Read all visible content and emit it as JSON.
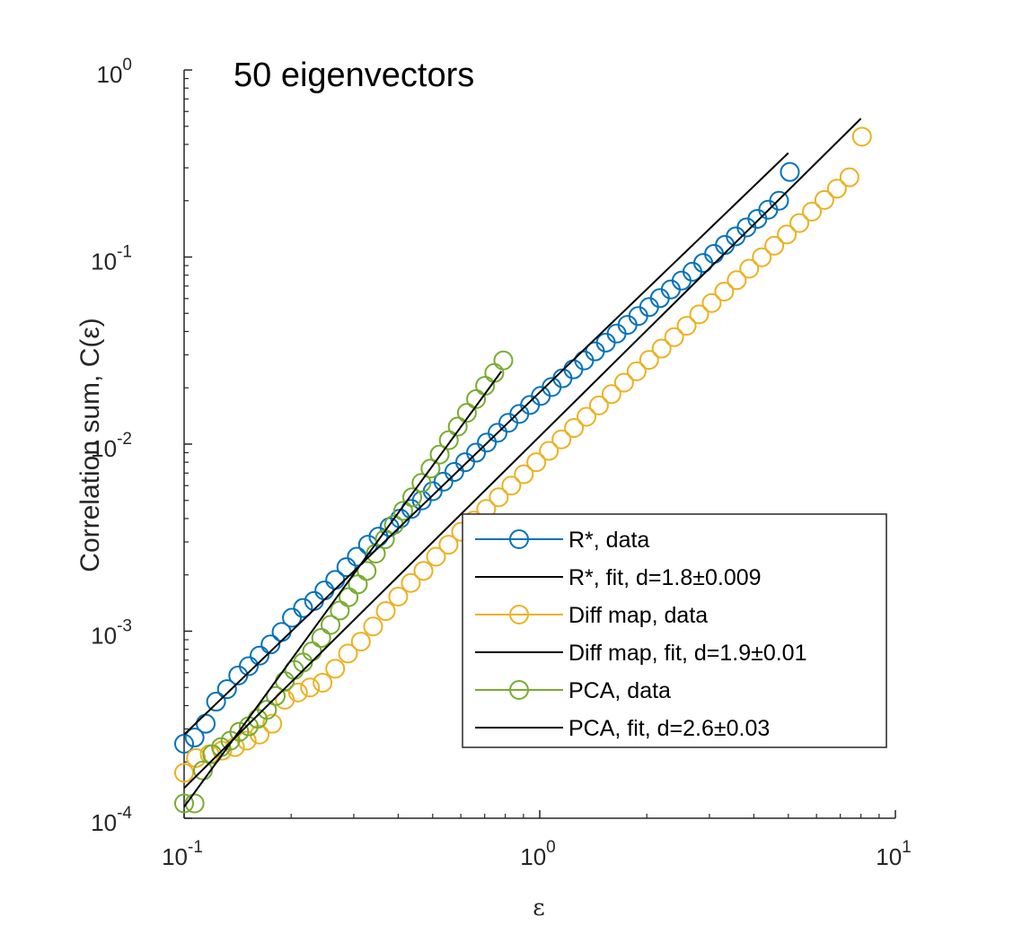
{
  "chart_data": {
    "type": "line",
    "scale": "log-log",
    "title": "50 eigenvectors",
    "xlabel": "ε",
    "ylabel": "Correlation sum, C(ε)",
    "xlim": [
      0.1,
      10
    ],
    "ylim": [
      0.0001,
      1
    ],
    "x_ticks": [
      {
        "value": 0.1,
        "base": "10",
        "exp": "-1"
      },
      {
        "value": 1,
        "base": "10",
        "exp": "0"
      },
      {
        "value": 10,
        "base": "10",
        "exp": "1"
      }
    ],
    "y_ticks": [
      {
        "value": 0.0001,
        "base": "10",
        "exp": "-4"
      },
      {
        "value": 0.001,
        "base": "10",
        "exp": "-3"
      },
      {
        "value": 0.01,
        "base": "10",
        "exp": "-2"
      },
      {
        "value": 0.1,
        "base": "10",
        "exp": "-1"
      },
      {
        "value": 1,
        "base": "10",
        "exp": "0"
      }
    ],
    "legend_position": "bottom-right",
    "series": [
      {
        "name": "R*, data",
        "kind": "markers",
        "color": "#0072BD",
        "x": [
          0.1,
          0.107,
          0.115,
          0.123,
          0.132,
          0.142,
          0.152,
          0.163,
          0.175,
          0.188,
          0.201,
          0.216,
          0.232,
          0.248,
          0.266,
          0.286,
          0.306,
          0.329,
          0.352,
          0.378,
          0.405,
          0.435,
          0.466,
          0.5,
          0.536,
          0.575,
          0.617,
          0.662,
          0.71,
          0.761,
          0.816,
          0.876,
          0.939,
          1.007,
          1.08,
          1.159,
          1.243,
          1.333,
          1.43,
          1.534,
          1.645,
          1.765,
          1.893,
          2.03,
          2.177,
          2.336,
          2.505,
          2.687,
          2.882,
          3.091,
          3.316,
          3.557,
          3.815,
          4.092,
          4.389,
          4.708,
          5.05
        ],
        "y": [
          0.00025,
          0.00027,
          0.00032,
          0.00042,
          0.00049,
          0.00058,
          0.00065,
          0.00074,
          0.00085,
          0.00099,
          0.00118,
          0.00133,
          0.00145,
          0.00165,
          0.00188,
          0.0022,
          0.0025,
          0.0029,
          0.0032,
          0.0036,
          0.004,
          0.0045,
          0.005,
          0.0056,
          0.0063,
          0.0071,
          0.008,
          0.009,
          0.0102,
          0.0115,
          0.013,
          0.0145,
          0.0162,
          0.0181,
          0.0202,
          0.0225,
          0.0251,
          0.028,
          0.0313,
          0.0349,
          0.039,
          0.0434,
          0.0484,
          0.054,
          0.0603,
          0.0671,
          0.0748,
          0.0834,
          0.093,
          0.104,
          0.116,
          0.129,
          0.144,
          0.16,
          0.179,
          0.2,
          0.285
        ]
      },
      {
        "name": "R*, fit, d=1.8±0.009",
        "kind": "line",
        "color": "#000000",
        "x": [
          0.1,
          5.0
        ],
        "y": [
          0.00028,
          0.36
        ]
      },
      {
        "name": "Diff map, data",
        "kind": "markers",
        "color": "#EDB120",
        "x": [
          0.1,
          0.108,
          0.118,
          0.128,
          0.139,
          0.15,
          0.163,
          0.177,
          0.192,
          0.209,
          0.226,
          0.245,
          0.266,
          0.289,
          0.314,
          0.34,
          0.369,
          0.4,
          0.434,
          0.471,
          0.511,
          0.554,
          0.601,
          0.652,
          0.707,
          0.767,
          0.832,
          0.902,
          0.978,
          1.061,
          1.151,
          1.248,
          1.353,
          1.467,
          1.591,
          1.726,
          1.872,
          2.03,
          2.201,
          2.387,
          2.588,
          2.807,
          3.044,
          3.301,
          3.58,
          3.882,
          4.21,
          4.566,
          4.951,
          5.369,
          5.823,
          6.314,
          6.848,
          7.426,
          8.053
        ],
        "y": [
          0.000175,
          0.00021,
          0.00022,
          0.00023,
          0.00024,
          0.00026,
          0.00028,
          0.00032,
          0.00043,
          0.00047,
          0.0005,
          0.00053,
          0.00063,
          0.00076,
          0.00088,
          0.00106,
          0.00128,
          0.00153,
          0.00181,
          0.0021,
          0.0025,
          0.0029,
          0.0034,
          0.0039,
          0.0045,
          0.0052,
          0.006,
          0.0069,
          0.008,
          0.0092,
          0.0106,
          0.0122,
          0.014,
          0.0161,
          0.0185,
          0.0213,
          0.0245,
          0.0282,
          0.0324,
          0.0373,
          0.0429,
          0.0494,
          0.0568,
          0.0654,
          0.0752,
          0.0866,
          0.0997,
          0.115,
          0.132,
          0.152,
          0.175,
          0.202,
          0.232,
          0.267,
          0.44
        ]
      },
      {
        "name": "Diff map, fit, d=1.9±0.01",
        "kind": "line",
        "color": "#000000",
        "x": [
          0.1,
          8.0
        ],
        "y": [
          0.000145,
          0.55
        ]
      },
      {
        "name": "PCA, data",
        "kind": "markers",
        "color": "#77AC30",
        "x": [
          0.1,
          0.107,
          0.113,
          0.12,
          0.127,
          0.135,
          0.143,
          0.152,
          0.161,
          0.171,
          0.181,
          0.192,
          0.204,
          0.216,
          0.229,
          0.243,
          0.258,
          0.274,
          0.29,
          0.308,
          0.326,
          0.346,
          0.367,
          0.389,
          0.413,
          0.438,
          0.465,
          0.493,
          0.523,
          0.555,
          0.588,
          0.624,
          0.662,
          0.702,
          0.745,
          0.79
        ],
        "y": [
          0.00012,
          0.00012,
          0.00018,
          0.00022,
          0.00024,
          0.00026,
          0.00029,
          0.00031,
          0.00034,
          0.00038,
          0.00045,
          0.00054,
          0.00062,
          0.00068,
          0.00078,
          0.00092,
          0.00108,
          0.00129,
          0.00152,
          0.00178,
          0.0021,
          0.0026,
          0.0031,
          0.0037,
          0.0044,
          0.0052,
          0.0062,
          0.0074,
          0.0088,
          0.0105,
          0.0124,
          0.0147,
          0.0174,
          0.0205,
          0.024,
          0.028
        ]
      },
      {
        "name": "PCA, fit, d=2.6±0.03",
        "kind": "line",
        "color": "#000000",
        "x": [
          0.1,
          0.78
        ],
        "y": [
          0.000115,
          0.0245
        ]
      }
    ]
  }
}
